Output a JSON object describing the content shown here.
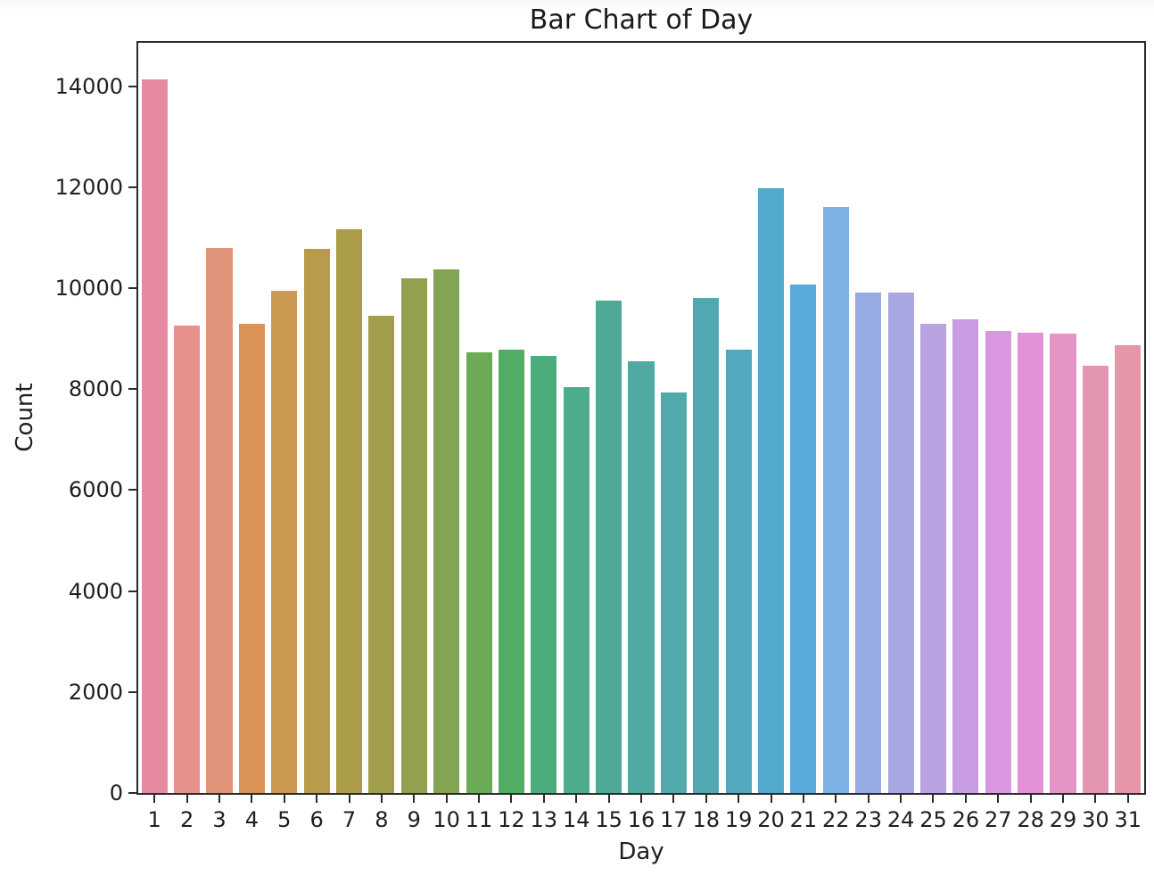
{
  "chart_data": {
    "type": "bar",
    "title": "Bar Chart of Day",
    "xlabel": "Day",
    "ylabel": "Count",
    "categories": [
      "1",
      "2",
      "3",
      "4",
      "5",
      "6",
      "7",
      "8",
      "9",
      "10",
      "11",
      "12",
      "13",
      "14",
      "15",
      "16",
      "17",
      "18",
      "19",
      "20",
      "21",
      "22",
      "23",
      "24",
      "25",
      "26",
      "27",
      "28",
      "29",
      "30",
      "31"
    ],
    "values": [
      14130,
      9260,
      10800,
      9300,
      9950,
      10770,
      11160,
      9460,
      10190,
      10380,
      8730,
      8780,
      8650,
      8040,
      9750,
      8550,
      7940,
      9810,
      8790,
      11980,
      10070,
      11610,
      9910,
      9910,
      9290,
      9390,
      9160,
      9120,
      9100,
      8460,
      8870
    ],
    "bar_colors": [
      "#e58aa0",
      "#e6928b",
      "#e09479",
      "#da9356",
      "#ca9a52",
      "#b99c4b",
      "#ac9d49",
      "#a19e4e",
      "#92a050",
      "#83a452",
      "#6caa55",
      "#51ae63",
      "#4cac7d",
      "#4dab8e",
      "#4eaa97",
      "#4faaa1",
      "#50a9aa",
      "#51a8b3",
      "#53a8bf",
      "#53a9cc",
      "#59aadb",
      "#7db0e5",
      "#97abe3",
      "#a9a7e2",
      "#b9a2e2",
      "#c89ce0",
      "#d897de",
      "#e392d8",
      "#e494c5",
      "#e495b2",
      "#e696a6"
    ],
    "ylim": [
      0,
      14860
    ],
    "yticks": [
      0,
      2000,
      4000,
      6000,
      8000,
      10000,
      12000,
      14000
    ],
    "grid": false,
    "legend": null,
    "bar_relative_width": 0.8,
    "axis_color": "#2b2b2b",
    "text_color": "#1f1f1f"
  }
}
